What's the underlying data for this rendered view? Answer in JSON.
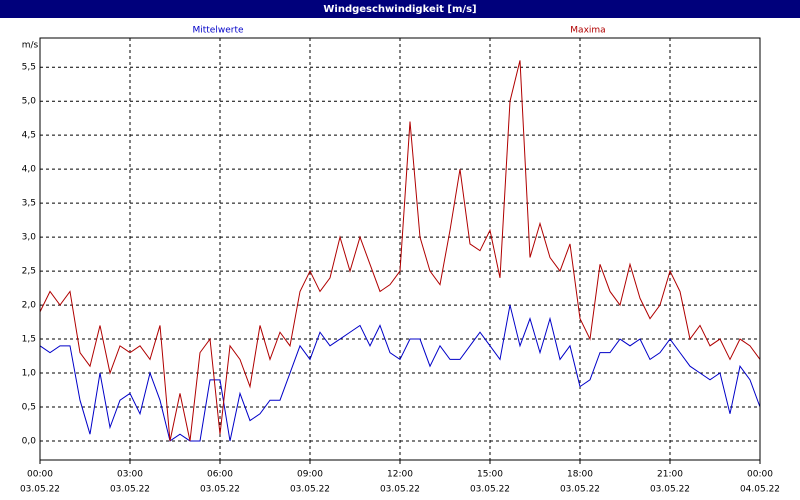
{
  "chart_data": {
    "type": "line",
    "title": "Windgeschwindigkeit [m/s]",
    "y_label": "m/s",
    "x": [
      0,
      20,
      40,
      60,
      80,
      100,
      120,
      140,
      160,
      180,
      200,
      220,
      240,
      260,
      280,
      300,
      320,
      340,
      360,
      380,
      400,
      420,
      440,
      460,
      480,
      500,
      520,
      540,
      560,
      580,
      600,
      620,
      640,
      660,
      680,
      700,
      720,
      740,
      760,
      780,
      800,
      820,
      840,
      860,
      880,
      900,
      920,
      940,
      960,
      980,
      1000,
      1020,
      1040,
      1060,
      1080,
      1100,
      1120,
      1140,
      1160,
      1180,
      1200,
      1220,
      1240,
      1260,
      1280,
      1300,
      1320,
      1340,
      1360,
      1380,
      1400,
      1420,
      1440
    ],
    "series": [
      {
        "name": "Mittelwerte",
        "color": "#0000c8",
        "values": [
          1.4,
          1.3,
          1.4,
          1.4,
          0.6,
          0.1,
          1.0,
          0.2,
          0.6,
          0.7,
          0.4,
          1.0,
          0.6,
          0.0,
          0.1,
          0.0,
          0.0,
          0.9,
          0.9,
          0.0,
          0.7,
          0.3,
          0.4,
          0.6,
          0.6,
          1.0,
          1.4,
          1.2,
          1.6,
          1.4,
          1.5,
          1.6,
          1.7,
          1.4,
          1.7,
          1.3,
          1.2,
          1.5,
          1.5,
          1.1,
          1.4,
          1.2,
          1.2,
          1.4,
          1.6,
          1.4,
          1.2,
          2.0,
          1.4,
          1.8,
          1.3,
          1.8,
          1.2,
          1.4,
          0.8,
          0.9,
          1.3,
          1.3,
          1.5,
          1.4,
          1.5,
          1.2,
          1.3,
          1.5,
          1.3,
          1.1,
          1.0,
          0.9,
          1.0,
          0.4,
          1.1,
          0.9,
          0.5
        ]
      },
      {
        "name": "Maxima",
        "color": "#b00000",
        "values": [
          1.9,
          2.2,
          2.0,
          2.2,
          1.3,
          1.1,
          1.7,
          1.0,
          1.4,
          1.3,
          1.4,
          1.2,
          1.7,
          0.0,
          0.7,
          0.0,
          1.3,
          1.5,
          0.1,
          1.4,
          1.2,
          0.8,
          1.7,
          1.2,
          1.6,
          1.4,
          2.2,
          2.5,
          2.2,
          2.4,
          3.0,
          2.5,
          3.0,
          2.6,
          2.2,
          2.3,
          2.5,
          4.7,
          3.0,
          2.5,
          2.3,
          3.1,
          4.0,
          2.9,
          2.8,
          3.1,
          2.4,
          5.0,
          5.6,
          2.7,
          3.2,
          2.7,
          2.5,
          2.9,
          1.8,
          1.5,
          2.6,
          2.2,
          2.0,
          2.6,
          2.1,
          1.8,
          2.0,
          2.5,
          2.2,
          1.5,
          1.7,
          1.4,
          1.5,
          1.2,
          1.5,
          1.4,
          1.2
        ]
      }
    ],
    "xlim": [
      0,
      1440
    ],
    "xticks": [
      {
        "value": 0,
        "label": "00:00"
      },
      {
        "value": 180,
        "label": "03:00"
      },
      {
        "value": 360,
        "label": "06:00"
      },
      {
        "value": 540,
        "label": "09:00"
      },
      {
        "value": 720,
        "label": "12:00"
      },
      {
        "value": 900,
        "label": "15:00"
      },
      {
        "value": 1080,
        "label": "18:00"
      },
      {
        "value": 1260,
        "label": "21:00"
      },
      {
        "value": 1440,
        "label": "00:00"
      }
    ],
    "xtick_dates": [
      "03.05.22",
      "03.05.22",
      "03.05.22",
      "03.05.22",
      "03.05.22",
      "03.05.22",
      "03.05.22",
      "03.05.22",
      "04.05.22"
    ],
    "ylim": [
      -0.28,
      5.93
    ],
    "yticks": [
      {
        "value": 0,
        "label": "0,0"
      },
      {
        "value": 0.5,
        "label": "0,5"
      },
      {
        "value": 1,
        "label": "1,0"
      },
      {
        "value": 1.5,
        "label": "1,5"
      },
      {
        "value": 2,
        "label": "2,0"
      },
      {
        "value": 2.5,
        "label": "2,5"
      },
      {
        "value": 3,
        "label": "3,0"
      },
      {
        "value": 3.5,
        "label": "3,5"
      },
      {
        "value": 4,
        "label": "4,0"
      },
      {
        "value": 4.5,
        "label": "4,5"
      },
      {
        "value": 5,
        "label": "5,0"
      },
      {
        "value": 5.5,
        "label": "5,5"
      }
    ],
    "grid": true
  }
}
